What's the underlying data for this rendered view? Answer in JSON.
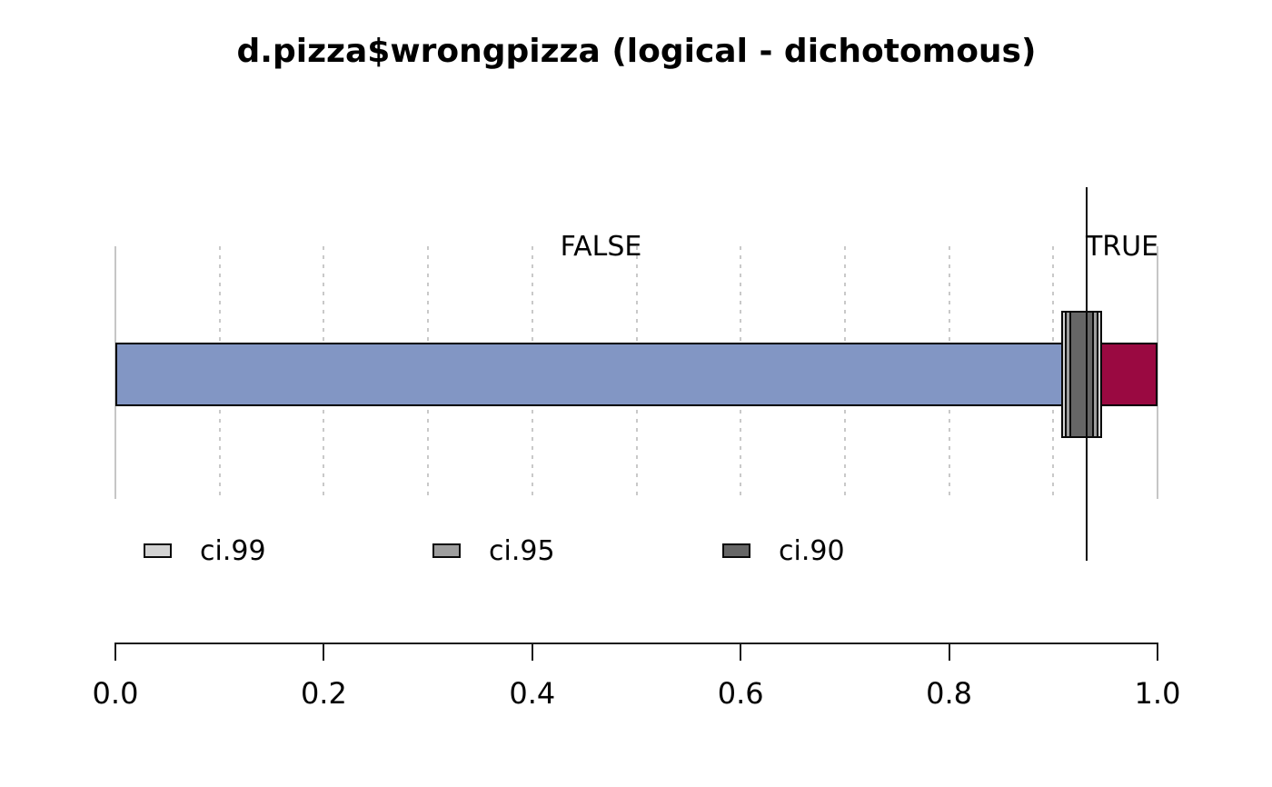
{
  "chart_data": {
    "type": "bar",
    "subtype": "horizontal-stacked-proportion",
    "title": "d.pizza$wrongpizza (logical - dichotomous)",
    "categories": [
      "FALSE",
      "TRUE"
    ],
    "values": [
      0.932,
      0.068
    ],
    "segment_colors": [
      "#8296C4",
      "#9A0941"
    ],
    "mean_line": 0.932,
    "confidence_intervals": [
      {
        "label": "ci.99",
        "low": 0.908,
        "high": 0.947,
        "color": "#D3D3D3"
      },
      {
        "label": "ci.95",
        "low": 0.911,
        "high": 0.943,
        "color": "#9E9E9E"
      },
      {
        "label": "ci.90",
        "low": 0.915,
        "high": 0.939,
        "color": "#666666"
      }
    ],
    "xlim": [
      0,
      1
    ],
    "x_ticks": [
      0.0,
      0.2,
      0.4,
      0.6,
      0.8,
      1.0
    ],
    "x_tick_labels": [
      "0.0",
      "0.2",
      "0.4",
      "0.6",
      "0.8",
      "1.0"
    ],
    "gridlines_every": 0.1,
    "grid": true,
    "legend_position": "below-plot",
    "axis_color": "#1a1a1a",
    "gridline_color": "#c9c9c9"
  }
}
